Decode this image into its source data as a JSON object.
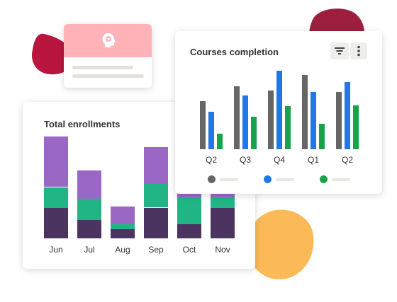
{
  "colors": {
    "blob_crimson": "#b8163f",
    "blob_maroon": "#9c1f3e",
    "blob_orange": "#fbb957",
    "profile_header": "#ffb3b9",
    "profile_lines": "#e3e0d9",
    "enroll_purple": "#9b67c4",
    "enroll_teal": "#21b585",
    "enroll_dark": "#4b3460",
    "completion_gray": "#666666",
    "completion_blue": "#1f78e6",
    "completion_green": "#1aa24b",
    "legend_line": "#e9e7e3"
  },
  "profile_card": {
    "icon": "head-gear-icon"
  },
  "completion_card": {
    "title": "Courses completion",
    "filter_icon": "filter-icon",
    "more_icon": "vertical-dots-icon"
  },
  "enrollments_card": {
    "title": "Total enrollments"
  },
  "chart_data": [
    {
      "type": "bar",
      "stacked": true,
      "title": "Total enrollments",
      "categories": [
        "Jun",
        "Jul",
        "Aug",
        "Sep",
        "Oct",
        "Nov"
      ],
      "series": [
        {
          "color": "#4b3460",
          "values": [
            42,
            25,
            13,
            42,
            19,
            42
          ]
        },
        {
          "color": "#21b585",
          "values": [
            28,
            29,
            6,
            32,
            37,
            14
          ]
        },
        {
          "color": "#9b67c4",
          "values": [
            69,
            39,
            24,
            51,
            42,
            14
          ]
        }
      ],
      "ylim": [
        0,
        140
      ],
      "grid": false,
      "legend": "none"
    },
    {
      "type": "bar",
      "title": "Courses completion",
      "categories": [
        "Q2",
        "Q3",
        "Q4",
        "Q1",
        "Q2"
      ],
      "series": [
        {
          "color": "#666666",
          "values": [
            68,
            89,
            83,
            105,
            81
          ]
        },
        {
          "color": "#1f78e6",
          "values": [
            53,
            76,
            111,
            81,
            95
          ]
        },
        {
          "color": "#1aa24b",
          "values": [
            22,
            46,
            61,
            36,
            62
          ]
        }
      ],
      "ylim": [
        0,
        115
      ],
      "grid": false,
      "legend": "bottom"
    }
  ]
}
